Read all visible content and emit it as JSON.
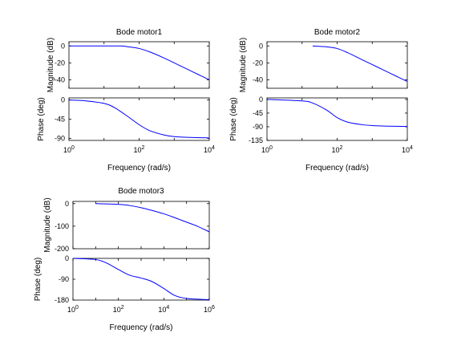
{
  "chart_data": [
    {
      "type": "line",
      "title": "Bode motor1",
      "xlabel": "Frequency  (rad/s)",
      "xscale": "log",
      "xlim": [
        1,
        10000
      ],
      "x_tick_labels": [
        {
          "base": "10",
          "exp": "0"
        },
        {
          "base": "10",
          "exp": "2"
        },
        {
          "base": "10",
          "exp": "4"
        }
      ],
      "magnitude": {
        "ylabel": "Magnitude (dB)",
        "ylim": [
          -50,
          5
        ],
        "yticks": [
          0,
          -20,
          -40
        ],
        "series": [
          {
            "color": "#0000ff",
            "x": [
              1,
              10,
              30,
              50,
              100,
              200,
              500,
              1000,
              2000,
              5000,
              10000
            ],
            "y": [
              0,
              0,
              0,
              -1,
              -3,
              -7,
              -14,
              -20,
              -26,
              -34,
              -40
            ]
          }
        ]
      },
      "phase": {
        "ylabel": "Phase (deg)",
        "ylim": [
          -95,
          5
        ],
        "yticks": [
          0,
          -45,
          -90
        ],
        "series": [
          {
            "color": "#0000ff",
            "x": [
              1,
              3,
              10,
              20,
              50,
              100,
              200,
              500,
              1000,
              3000,
              10000
            ],
            "y": [
              0,
              -2,
              -8,
              -18,
              -40,
              -58,
              -72,
              -82,
              -86,
              -88,
              -89
            ]
          }
        ]
      }
    },
    {
      "type": "line",
      "title": "Bode motor2",
      "xlabel": "Frequency  (rad/s)",
      "xscale": "log",
      "xlim": [
        1,
        10000
      ],
      "x_tick_labels": [
        {
          "base": "10",
          "exp": "0"
        },
        {
          "base": "10",
          "exp": "2"
        },
        {
          "base": "10",
          "exp": "4"
        }
      ],
      "magnitude": {
        "ylabel": "Magnitude (dB)",
        "ylim": [
          -50,
          5
        ],
        "yticks": [
          0,
          -20,
          -40
        ],
        "series": [
          {
            "color": "#0000ff",
            "x": [
              20,
              50,
              100,
              200,
              500,
              1000,
              2000,
              5000,
              10000
            ],
            "y": [
              0,
              -1,
              -3,
              -8,
              -16,
              -22,
              -28,
              -36,
              -42
            ]
          }
        ]
      },
      "phase": {
        "ylabel": "Phase (deg)",
        "ylim": [
          -135,
          5
        ],
        "yticks": [
          0,
          -45,
          -90,
          -135
        ],
        "series": [
          {
            "color": "#0000ff",
            "x": [
              1,
              10,
              20,
              50,
              100,
              200,
              500,
              1000,
              3000,
              10000
            ],
            "y": [
              0,
              -5,
              -12,
              -35,
              -60,
              -75,
              -83,
              -86,
              -88,
              -89
            ]
          }
        ]
      }
    },
    {
      "type": "line",
      "title": "Bode motor3",
      "xlabel": "Frequency  (rad/s)",
      "xscale": "log",
      "xlim": [
        1,
        1000000
      ],
      "x_tick_labels": [
        {
          "base": "10",
          "exp": "0"
        },
        {
          "base": "10",
          "exp": "2"
        },
        {
          "base": "10",
          "exp": "4"
        },
        {
          "base": "10",
          "exp": "6"
        }
      ],
      "magnitude": {
        "ylabel": "Magnitude (dB)",
        "ylim": [
          -200,
          10
        ],
        "yticks": [
          0,
          -100,
          -200
        ],
        "series": [
          {
            "color": "#0000ff",
            "x": [
              10,
              100,
              300,
              1000,
              3000,
              10000,
              30000,
              100000,
              300000,
              1000000
            ],
            "y": [
              0,
              -3,
              -8,
              -18,
              -30,
              -45,
              -62,
              -82,
              -100,
              -125
            ]
          }
        ]
      },
      "phase": {
        "ylabel": "Phase (deg)",
        "ylim": [
          -180,
          0
        ],
        "yticks": [
          0,
          -90,
          -180
        ],
        "series": [
          {
            "color": "#0000ff",
            "x": [
              1,
              10,
              30,
              100,
              300,
              1000,
              3000,
              10000,
              30000,
              100000,
              1000000
            ],
            "y": [
              0,
              -5,
              -20,
              -48,
              -72,
              -85,
              -100,
              -130,
              -160,
              -173,
              -178
            ]
          }
        ]
      }
    }
  ]
}
